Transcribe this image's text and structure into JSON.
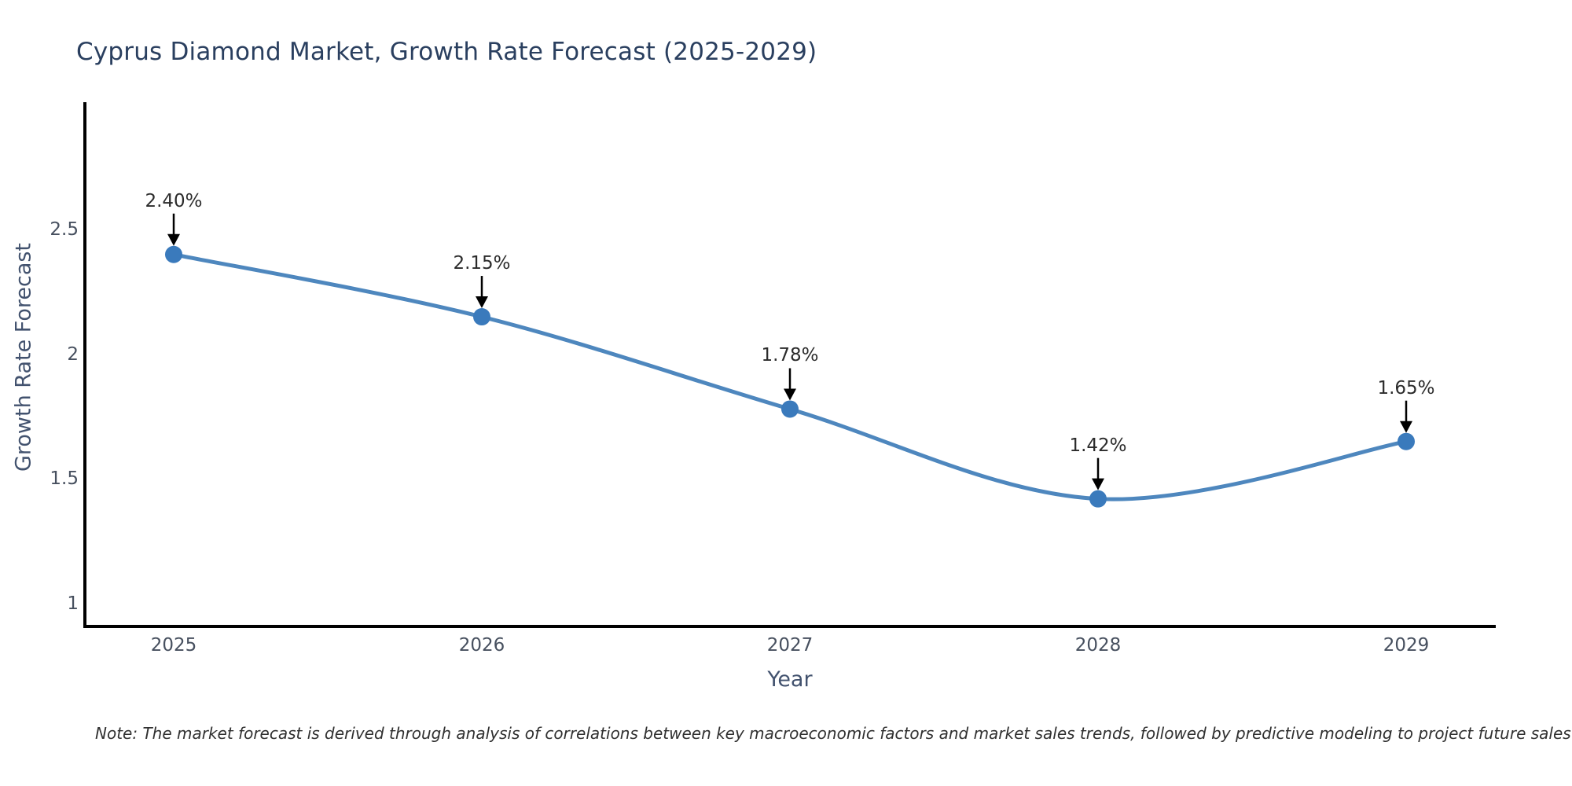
{
  "chart": {
    "title": "Cyprus Diamond Market, Growth Rate Forecast (2025-2029)",
    "xlabel": "Year",
    "ylabel": "Growth Rate Forecast",
    "note": "Note: The market forecast is derived through analysis of correlations between key macroeconomic factors and market sales trends, followed by predictive modeling to project future sales"
  },
  "chart_data": {
    "type": "line",
    "title": "Cyprus Diamond Market, Growth Rate Forecast (2025-2029)",
    "xlabel": "Year",
    "ylabel": "Growth Rate Forecast",
    "x": [
      2025,
      2026,
      2027,
      2028,
      2029
    ],
    "series": [
      {
        "name": "Growth Rate Forecast",
        "values": [
          2.4,
          2.15,
          1.78,
          1.42,
          1.65
        ]
      }
    ],
    "point_labels": [
      "2.40%",
      "2.15%",
      "1.78%",
      "1.42%",
      "1.65%"
    ],
    "xticks": [
      "2025",
      "2026",
      "2027",
      "2028",
      "2029"
    ],
    "yticks": [
      "1",
      "1.5",
      "2",
      "2.5"
    ],
    "ytick_values": [
      1,
      1.5,
      2,
      2.5
    ],
    "ylim": [
      0.91,
      3.02
    ],
    "xlim": [
      2024.71,
      2029.29
    ],
    "line_shape": "spline",
    "line_color": "#4e87be",
    "marker_color": "#3a7abc",
    "annotation_arrow_color": "#000000",
    "axis_line_color": "#000000",
    "text_color": "#2b2b2b",
    "title_color": "#2a3f5f",
    "grid": false,
    "legend": "none"
  }
}
